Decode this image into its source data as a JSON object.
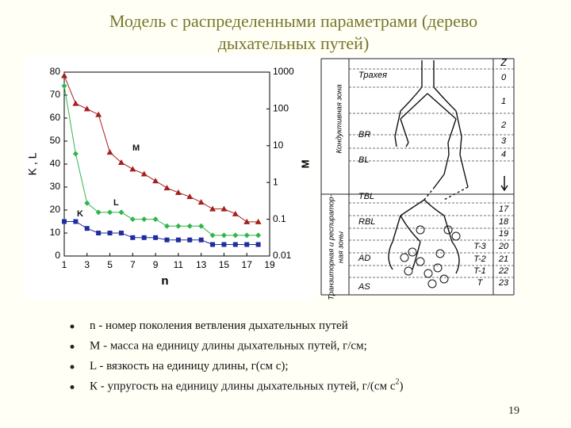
{
  "title": "Модель с распределенными параметрами (дерево дыхательных путей)",
  "chart_data": {
    "type": "line",
    "x_label": "n",
    "y_label": "K , L",
    "y2_label": "M",
    "x": [
      1,
      2,
      3,
      4,
      5,
      6,
      7,
      8,
      9,
      10,
      11,
      12,
      13,
      14,
      15,
      16,
      17,
      18
    ],
    "xlim": [
      1,
      19
    ],
    "xticks": [
      1,
      3,
      5,
      7,
      9,
      11,
      13,
      15,
      17,
      19
    ],
    "ylim": [
      0,
      80
    ],
    "yticks": [
      0,
      10,
      20,
      30,
      40,
      50,
      60,
      70,
      80
    ],
    "y2lim": [
      0.01,
      1000
    ],
    "y2ticks": [
      0.01,
      0.1,
      1,
      10,
      100,
      1000
    ],
    "y2_log": true,
    "series": [
      {
        "name": "K",
        "color": "#1f2d9e",
        "marker": "square",
        "values": [
          15,
          15,
          12,
          10,
          10,
          10,
          8,
          8,
          8,
          7,
          7,
          7,
          7,
          5,
          5,
          5,
          5,
          5
        ]
      },
      {
        "name": "L",
        "color": "#2fb54a",
        "marker": "diamond",
        "values": [
          74,
          44.5,
          23,
          19,
          19,
          19,
          16,
          16,
          16,
          13,
          13,
          13,
          13,
          9,
          9,
          9,
          9,
          9
        ]
      },
      {
        "name": "M",
        "color": "#a3201c",
        "marker": "triangle",
        "axis": "y2",
        "values": [
          800,
          140,
          100,
          70,
          6.6,
          3.5,
          2.3,
          1.7,
          1.1,
          0.71,
          0.53,
          0.41,
          0.29,
          0.19,
          0.19,
          0.14,
          0.085,
          0.085
        ]
      }
    ]
  },
  "diagram": {
    "column_header": "Z",
    "zone_labels": [
      {
        "lines": [
          "Кондуктивная зона"
        ]
      },
      {
        "lines": [
          "Транзиторная и респиратор-",
          "ная зоны"
        ]
      }
    ],
    "regions": [
      "Трахея",
      "BR",
      "BL",
      "TBL",
      "RBL",
      "AD",
      "AS"
    ],
    "generations": [
      "0",
      "1",
      "2",
      "3",
      "4",
      "17",
      "18",
      "19",
      "20",
      "21",
      "22",
      "23"
    ],
    "terminal_labels": [
      "T-3",
      "T-2",
      "T-1",
      "T"
    ]
  },
  "bullets": [
    {
      "text": "n - номер поколения ветвления дыхательных путей"
    },
    {
      "text": "M - масса на единицу длины дыхательных путей, г/см;"
    },
    {
      "text": "L - вязкость на единицу длины, г(см с);"
    },
    {
      "text": "К - упругость на единицу длины дыхательных путей, г/(см с",
      "sup": "2",
      "tail": ")"
    }
  ],
  "page_number": "19"
}
